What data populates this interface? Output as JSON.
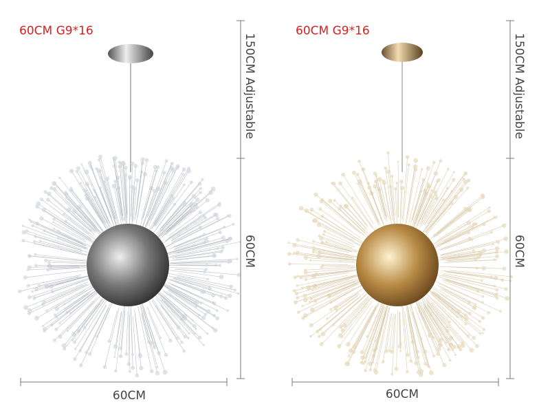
{
  "panels": [
    {
      "title": "60CM G9*16",
      "height_label": "150CM Adjustable",
      "diameter_label": "60CM",
      "width_label": "60CM"
    },
    {
      "title": "60CM G9*16",
      "height_label": "150CM Adjustable",
      "diameter_label": "60CM",
      "width_label": "60CM"
    }
  ]
}
